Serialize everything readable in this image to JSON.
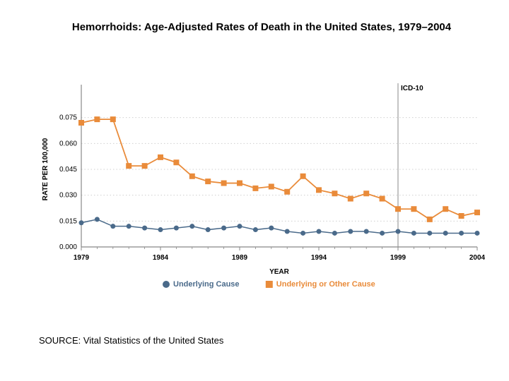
{
  "title": "Hemorrhoids:  Age-Adjusted Rates of Death in the United States, 1979–2004",
  "source": "SOURCE:  Vital Statistics of the United States",
  "chart": {
    "type": "line",
    "background_color": "#ffffff",
    "plot_bg": "#ffffff",
    "grid_color": "#cfcfcf",
    "axis_color": "#888888",
    "x": {
      "label": "YEAR",
      "min": 1979,
      "max": 2004,
      "ticks": [
        1979,
        1984,
        1989,
        1994,
        1999,
        2004
      ],
      "tick_label_fontsize": 10,
      "label_fontsize": 10
    },
    "y": {
      "label": "RATE PER 100,000",
      "min": 0.0,
      "max": 0.09,
      "ticks": [
        0.0,
        0.015,
        0.03,
        0.045,
        0.06,
        0.075
      ],
      "tick_labels": [
        "0.000",
        "0.015",
        "0.030",
        "0.045",
        "0.060",
        "0.075"
      ],
      "tick_label_fontsize": 10,
      "label_fontsize": 10
    },
    "vertical_ref": {
      "x": 1999,
      "color": "#888888",
      "label": "ICD-10"
    },
    "series": [
      {
        "name": "Underlying Cause",
        "color": "#4a6a8a",
        "marker": "circle",
        "marker_size": 5,
        "line_width": 1.5,
        "y": [
          0.014,
          0.016,
          0.012,
          0.012,
          0.011,
          0.01,
          0.011,
          0.012,
          0.01,
          0.011,
          0.012,
          0.01,
          0.011,
          0.009,
          0.008,
          0.009,
          0.008,
          0.009,
          0.009,
          0.008,
          0.009,
          0.008,
          0.008,
          0.008,
          0.008,
          0.008
        ]
      },
      {
        "name": "Underlying or Other Cause",
        "color": "#e98b3a",
        "marker": "square",
        "marker_size": 6,
        "line_width": 1.8,
        "y": [
          0.072,
          0.074,
          0.074,
          0.047,
          0.047,
          0.052,
          0.049,
          0.041,
          0.038,
          0.037,
          0.037,
          0.034,
          0.035,
          0.032,
          0.041,
          0.033,
          0.031,
          0.028,
          0.031,
          0.028,
          0.022,
          0.022,
          0.016,
          0.022,
          0.018,
          0.02
        ]
      }
    ],
    "legend": {
      "position": "bottom",
      "items": [
        {
          "label": "Underlying Cause",
          "color": "#4a6a8a",
          "marker": "circle"
        },
        {
          "label": "Underlying or Other Cause",
          "color": "#e98b3a",
          "marker": "square"
        }
      ]
    },
    "years": [
      1979,
      1980,
      1981,
      1982,
      1983,
      1984,
      1985,
      1986,
      1987,
      1988,
      1989,
      1990,
      1991,
      1992,
      1993,
      1994,
      1995,
      1996,
      1997,
      1998,
      1999,
      2000,
      2001,
      2002,
      2003,
      2004
    ]
  }
}
